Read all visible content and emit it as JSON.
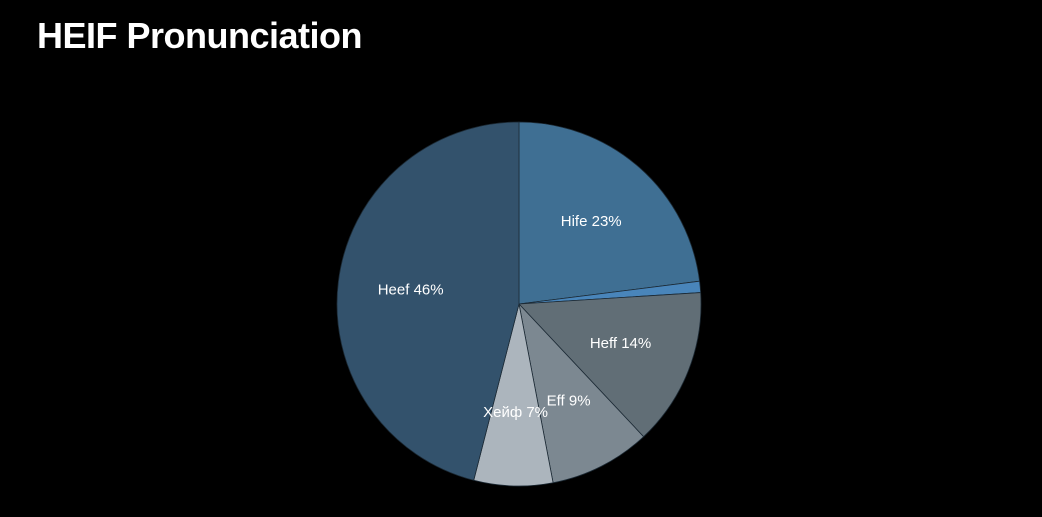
{
  "title": "HEIF Pronunciation",
  "chart_data": {
    "type": "pie",
    "title": "HEIF Pronunciation",
    "slices": [
      {
        "label": "Hife 23%",
        "value": 23,
        "color": "#3f6f93",
        "text_color": "#ffffff"
      },
      {
        "label": "",
        "value": 1,
        "color": "#4985ba",
        "text_color": "#ffffff"
      },
      {
        "label": "Heff 14%",
        "value": 14,
        "color": "#616e76",
        "text_color": "#ffffff"
      },
      {
        "label": "Eff 9%",
        "value": 9,
        "color": "#7c8891",
        "text_color": "#ffffff"
      },
      {
        "label": "Хейф 7%",
        "value": 7,
        "color": "#acb5bd",
        "text_color": "#ffffff"
      },
      {
        "label": "Heef 46%",
        "value": 46,
        "color": "#33526c",
        "text_color": "#ffffff"
      }
    ],
    "start": "top, clockwise",
    "legend": "none"
  }
}
